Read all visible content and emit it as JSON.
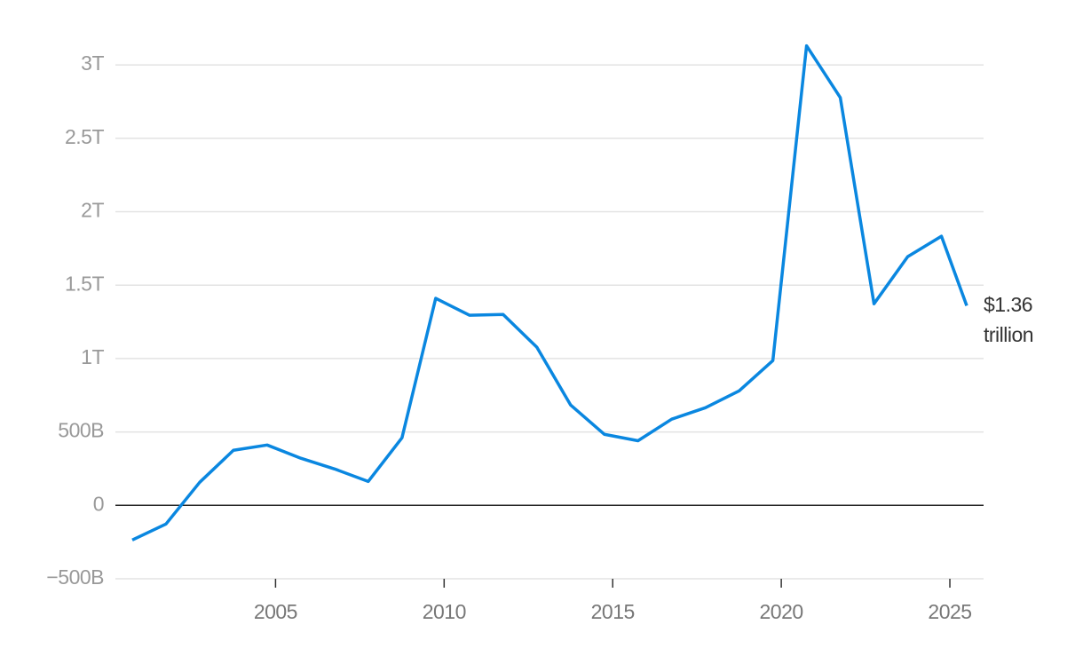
{
  "chart_data": {
    "type": "line",
    "x": [
      2000.75,
      2001.75,
      2002.75,
      2003.75,
      2004.75,
      2005.75,
      2006.75,
      2007.75,
      2008.75,
      2009.75,
      2010.75,
      2011.75,
      2012.75,
      2013.75,
      2014.75,
      2015.75,
      2016.75,
      2017.75,
      2018.75,
      2019.75,
      2020.75,
      2021.75,
      2022.75,
      2023.75,
      2024.75,
      2025.5
    ],
    "series": [
      {
        "color": "#0a87e0",
        "values": [
          -236000000000,
          -127000000000,
          157000000000,
          375000000000,
          411000000000,
          321000000000,
          248000000000,
          163000000000,
          460000000000,
          1410000000000,
          1295000000000,
          1300000000000,
          1077000000000,
          684000000000,
          484000000000,
          440000000000,
          587000000000,
          665000000000,
          780000000000,
          986000000000,
          3130000000000,
          2777000000000,
          1373000000000,
          1694000000000,
          1833000000000,
          1360000000000
        ]
      }
    ],
    "end_label": "$1.36 trillion",
    "xlim": [
      2000.25,
      2026
    ],
    "xticks": [
      2005,
      2010,
      2015,
      2020,
      2025
    ],
    "ylim": [
      -500000000000,
      3200000000000
    ],
    "yticks": [
      {
        "value": -500000000000,
        "label": "−500B"
      },
      {
        "value": 0,
        "label": "0"
      },
      {
        "value": 500000000000,
        "label": "500B"
      },
      {
        "value": 1000000000000,
        "label": "1T"
      },
      {
        "value": 1500000000000,
        "label": "1.5T"
      },
      {
        "value": 2000000000000,
        "label": "2T"
      },
      {
        "value": 2500000000000,
        "label": "2.5T"
      },
      {
        "value": 3000000000000,
        "label": "3T"
      }
    ],
    "grid": true
  }
}
